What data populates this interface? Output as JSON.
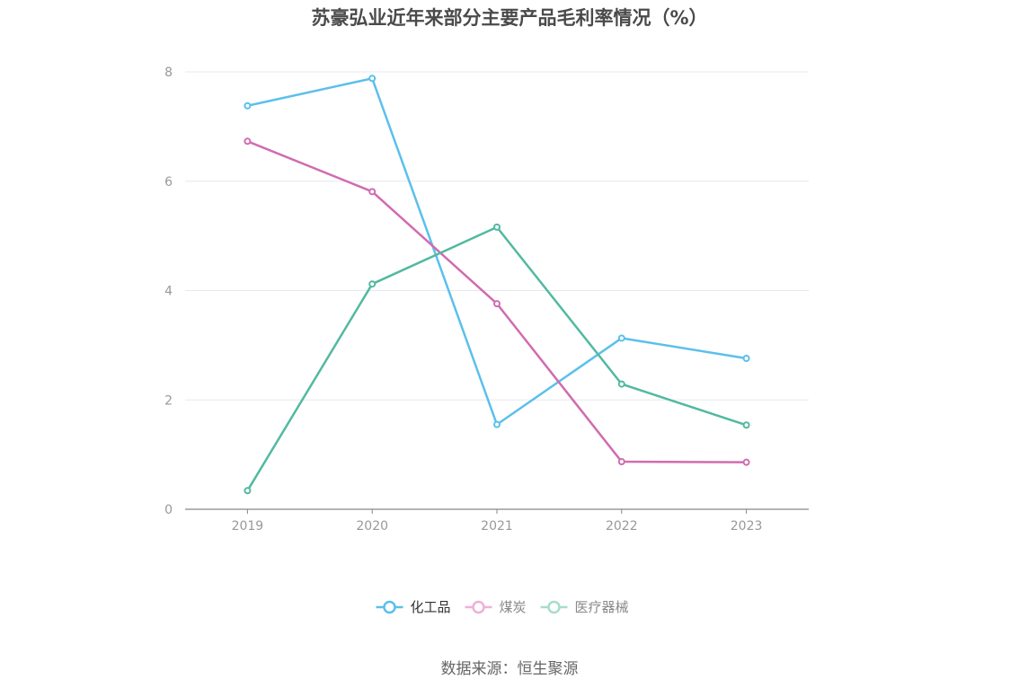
{
  "chart_data": {
    "type": "line",
    "title": "苏豪弘业近年来部分主要产品毛利率情况（%）",
    "xlabel": "",
    "ylabel": "",
    "x": [
      "2019",
      "2020",
      "2021",
      "2022",
      "2023"
    ],
    "ylim": [
      0,
      8
    ],
    "yticks": [
      0,
      2,
      4,
      6,
      8
    ],
    "grid": true,
    "legend": "bottom",
    "series": [
      {
        "name": "化工品",
        "color": "#5bc0eb",
        "values": [
          7.38,
          7.88,
          1.55,
          3.13,
          2.76
        ]
      },
      {
        "name": "煤炭",
        "color": "#d06cb0",
        "values": [
          6.73,
          5.81,
          3.76,
          0.87,
          0.86
        ]
      },
      {
        "name": "医疗器械",
        "color": "#52b9a0",
        "values": [
          0.34,
          4.12,
          5.16,
          2.29,
          1.54
        ]
      }
    ]
  },
  "source": "数据来源：恒生聚源"
}
